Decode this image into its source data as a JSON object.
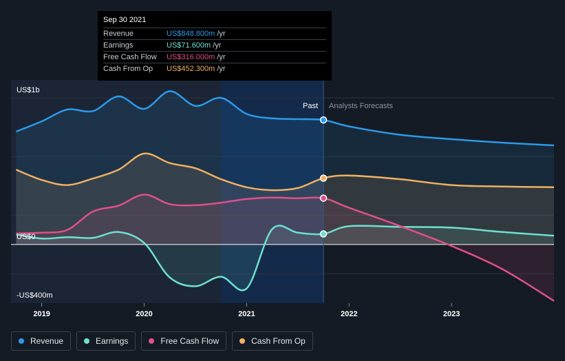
{
  "tooltip": {
    "date": "Sep 30 2021",
    "rows": [
      {
        "label": "Revenue",
        "value": "US$848.800m",
        "unit": "/yr",
        "color": "#2c9aea"
      },
      {
        "label": "Earnings",
        "value": "US$71.600m",
        "unit": "/yr",
        "color": "#6fe0cf"
      },
      {
        "label": "Free Cash Flow",
        "value": "US$316.000m",
        "unit": "/yr",
        "color": "#e0508a"
      },
      {
        "label": "Cash From Op",
        "value": "US$452.300m",
        "unit": "/yr",
        "color": "#f0b061"
      }
    ]
  },
  "legend": [
    {
      "label": "Revenue",
      "color": "#2c9aea"
    },
    {
      "label": "Earnings",
      "color": "#6fe0cf"
    },
    {
      "label": "Free Cash Flow",
      "color": "#e0508a"
    },
    {
      "label": "Cash From Op",
      "color": "#f0b061"
    }
  ],
  "chart_data": {
    "type": "area",
    "y_unit": "US$m",
    "ylim": [
      -400,
      1000
    ],
    "y_tick_labels": [
      {
        "value": 1000,
        "label": "US$1b"
      },
      {
        "value": 0,
        "label": "US$0"
      },
      {
        "value": -400,
        "label": "-US$400m"
      }
    ],
    "xlim": [
      2018.7,
      2024.0
    ],
    "x_ticks": [
      2019,
      2020,
      2021,
      2022,
      2023
    ],
    "past_label": "Past",
    "forecast_label": "Analysts Forecasts",
    "divider_x": 2021.75,
    "shaded_band_x": [
      2020.75,
      2021.75
    ],
    "series": [
      {
        "name": "Revenue",
        "color": "#2c9aea",
        "points": [
          [
            2018.75,
            770
          ],
          [
            2019.0,
            840
          ],
          [
            2019.25,
            920
          ],
          [
            2019.5,
            910
          ],
          [
            2019.75,
            1010
          ],
          [
            2020.0,
            925
          ],
          [
            2020.25,
            1045
          ],
          [
            2020.5,
            945
          ],
          [
            2020.75,
            1000
          ],
          [
            2021.0,
            890
          ],
          [
            2021.25,
            860
          ],
          [
            2021.5,
            855
          ],
          [
            2021.75,
            849
          ],
          [
            2022.0,
            805
          ],
          [
            2022.5,
            748
          ],
          [
            2023.0,
            718
          ],
          [
            2023.5,
            694
          ],
          [
            2024.0,
            676
          ]
        ]
      },
      {
        "name": "Earnings",
        "color": "#6fe0cf",
        "points": [
          [
            2018.75,
            70
          ],
          [
            2019.0,
            40
          ],
          [
            2019.25,
            50
          ],
          [
            2019.5,
            45
          ],
          [
            2019.75,
            85
          ],
          [
            2020.0,
            10
          ],
          [
            2020.25,
            -225
          ],
          [
            2020.5,
            -285
          ],
          [
            2020.75,
            -220
          ],
          [
            2021.0,
            -300
          ],
          [
            2021.25,
            105
          ],
          [
            2021.5,
            80
          ],
          [
            2021.75,
            72
          ],
          [
            2022.0,
            125
          ],
          [
            2022.5,
            120
          ],
          [
            2023.0,
            115
          ],
          [
            2023.5,
            85
          ],
          [
            2024.0,
            60
          ]
        ]
      },
      {
        "name": "Free Cash Flow",
        "color": "#e0508a",
        "points": [
          [
            2018.75,
            75
          ],
          [
            2019.0,
            80
          ],
          [
            2019.25,
            100
          ],
          [
            2019.5,
            225
          ],
          [
            2019.75,
            265
          ],
          [
            2020.0,
            340
          ],
          [
            2020.25,
            275
          ],
          [
            2020.5,
            268
          ],
          [
            2020.75,
            285
          ],
          [
            2021.0,
            310
          ],
          [
            2021.25,
            320
          ],
          [
            2021.5,
            315
          ],
          [
            2021.75,
            316
          ],
          [
            2022.0,
            250
          ],
          [
            2022.5,
            125
          ],
          [
            2023.0,
            -10
          ],
          [
            2023.5,
            -170
          ],
          [
            2024.0,
            -385
          ]
        ]
      },
      {
        "name": "Cash From Op",
        "color": "#f0b061",
        "points": [
          [
            2018.75,
            510
          ],
          [
            2019.0,
            440
          ],
          [
            2019.25,
            405
          ],
          [
            2019.5,
            450
          ],
          [
            2019.75,
            510
          ],
          [
            2020.0,
            620
          ],
          [
            2020.25,
            555
          ],
          [
            2020.5,
            520
          ],
          [
            2020.75,
            445
          ],
          [
            2021.0,
            390
          ],
          [
            2021.25,
            370
          ],
          [
            2021.5,
            385
          ],
          [
            2021.75,
            452
          ],
          [
            2022.0,
            470
          ],
          [
            2022.5,
            445
          ],
          [
            2023.0,
            405
          ],
          [
            2023.5,
            395
          ],
          [
            2024.0,
            390
          ]
        ]
      }
    ]
  }
}
